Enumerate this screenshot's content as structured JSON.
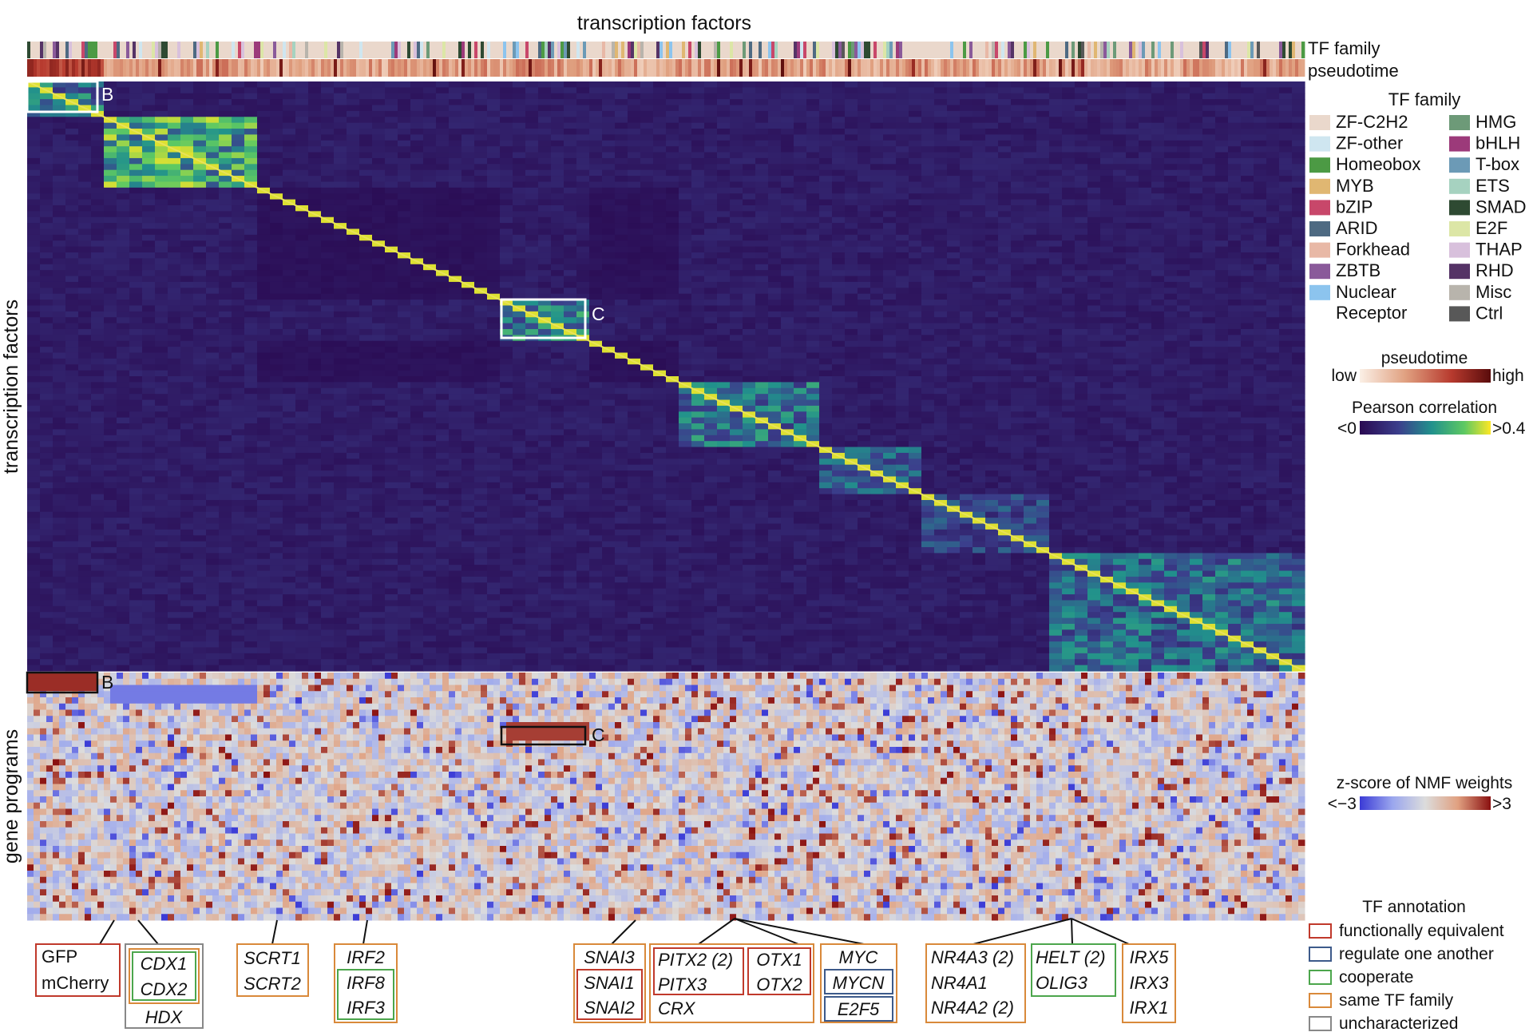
{
  "chart_data": [
    {
      "type": "heatmap",
      "title": "transcription factors",
      "xlabel": "",
      "ylabel": "transcription factors",
      "annotation_tracks": [
        "TF family",
        "pseudotime"
      ],
      "colorbar": {
        "title": "Pearson correlation",
        "min_label": "<0",
        "max_label": ">0.4",
        "colors": [
          "#2a0a52",
          "#3b3f8c",
          "#21918c",
          "#5ec962",
          "#fde725"
        ]
      },
      "pseudotime_colorbar": {
        "title": "pseudotime",
        "min_label": "low",
        "max_label": "high",
        "colors": [
          "#fbf0e6",
          "#e0a080",
          "#b73a2e",
          "#5a0c0c"
        ]
      },
      "highlighted_regions": [
        {
          "label": "B",
          "rows": [
            0,
            0.055
          ],
          "cols": [
            0,
            0.055
          ]
        },
        {
          "label": "C",
          "rows": [
            0.37,
            0.44
          ],
          "cols": [
            0.37,
            0.44
          ]
        }
      ],
      "blocks": [
        {
          "from": 0.0,
          "to": 0.055,
          "strength": 0.55
        },
        {
          "from": 0.055,
          "to": 0.18,
          "strength": 0.85
        },
        {
          "from": 0.37,
          "to": 0.44,
          "strength": 0.6
        },
        {
          "from": 0.51,
          "to": 0.62,
          "strength": 0.55
        },
        {
          "from": 0.62,
          "to": 0.7,
          "strength": 0.45
        },
        {
          "from": 0.7,
          "to": 0.8,
          "strength": 0.35
        },
        {
          "from": 0.8,
          "to": 1.0,
          "strength": 0.5
        }
      ]
    },
    {
      "type": "heatmap",
      "ylabel": "gene programs",
      "colorbar": {
        "title": "z-score of NMF weights",
        "min_label": "<−3",
        "max_label": ">3",
        "colors": [
          "#3b3bd6",
          "#9aa6ee",
          "#dcdcdc",
          "#e0a080",
          "#8a1010"
        ]
      },
      "highlighted_regions": [
        {
          "label": "B",
          "cols": [
            0,
            0.055
          ]
        },
        {
          "label": "C",
          "cols": [
            0.37,
            0.44
          ]
        }
      ]
    }
  ],
  "legend_tf_family": {
    "title": "TF family",
    "left": [
      {
        "name": "ZF-C2H2",
        "color": "#ead8cc"
      },
      {
        "name": "ZF-other",
        "color": "#cfe6f0"
      },
      {
        "name": "Homeobox",
        "color": "#4c9a44"
      },
      {
        "name": "MYB",
        "color": "#e0b772"
      },
      {
        "name": "bZIP",
        "color": "#c8476a"
      },
      {
        "name": "ARID",
        "color": "#4e6a82"
      },
      {
        "name": "Forkhead",
        "color": "#e8b8a6"
      },
      {
        "name": "ZBTB",
        "color": "#8a5a9a"
      },
      {
        "name": "Nuclear Receptor",
        "color": "#8cc4ee"
      }
    ],
    "right": [
      {
        "name": "HMG",
        "color": "#6d9a78"
      },
      {
        "name": "bHLH",
        "color": "#9c3a7a"
      },
      {
        "name": "T-box",
        "color": "#6c9ab6"
      },
      {
        "name": "ETS",
        "color": "#a6d2c0"
      },
      {
        "name": "SMAD",
        "color": "#2e4a32"
      },
      {
        "name": "E2F",
        "color": "#dce6a6"
      },
      {
        "name": "THAP",
        "color": "#d8c0dc"
      },
      {
        "name": "RHD",
        "color": "#553366"
      },
      {
        "name": "Misc",
        "color": "#b8b4ac"
      },
      {
        "name": "Ctrl",
        "color": "#585858"
      }
    ]
  },
  "legend_annotation": {
    "title": "TF annotation",
    "items": [
      {
        "name": "functionally equivalent",
        "color": "#c0392b"
      },
      {
        "name": "regulate one another",
        "color": "#3d5a8a"
      },
      {
        "name": "cooperate",
        "color": "#4ca64c"
      },
      {
        "name": "same TF family",
        "color": "#d9893a"
      },
      {
        "name": "uncharacterized",
        "color": "#888888"
      }
    ]
  },
  "gene_annotations": [
    {
      "pos": 0.068,
      "lines": [
        "GFP",
        "mCherry"
      ],
      "italic": false,
      "category": "functionally equivalent"
    },
    {
      "pos": 0.095,
      "lines": [
        "CDX1",
        "CDX2",
        "HDX"
      ],
      "italic": true,
      "category": "cooperate, same TF family, uncharacterized"
    },
    {
      "pos": 0.2,
      "lines": [
        "SCRT1",
        "SCRT2"
      ],
      "italic": true,
      "category": "same TF family"
    },
    {
      "pos": 0.267,
      "lines": [
        "IRF2",
        "IRF8",
        "IRF3"
      ],
      "italic": true,
      "category": "cooperate, same TF family"
    },
    {
      "pos": 0.47,
      "lines": [
        "SNAI3",
        "SNAI1",
        "SNAI2"
      ],
      "italic": true,
      "category": "functionally equivalent, same TF family"
    },
    {
      "pos": 0.6,
      "lines": [
        "PITX2 (2)",
        "PITX3",
        "CRX",
        "OTX1",
        "OTX2",
        "MYC",
        "MYCN",
        "E2F5"
      ],
      "italic": true,
      "category": "mixed"
    },
    {
      "pos": 0.84,
      "lines": [
        "NR4A3 (2)",
        "NR4A1",
        "NR4A2 (2)",
        "HELT (2)",
        "OLIG3",
        "IRX5",
        "IRX3",
        "IRX1"
      ],
      "italic": true,
      "category": "mixed"
    }
  ],
  "box_labels": {
    "b": "B",
    "c": "C"
  }
}
